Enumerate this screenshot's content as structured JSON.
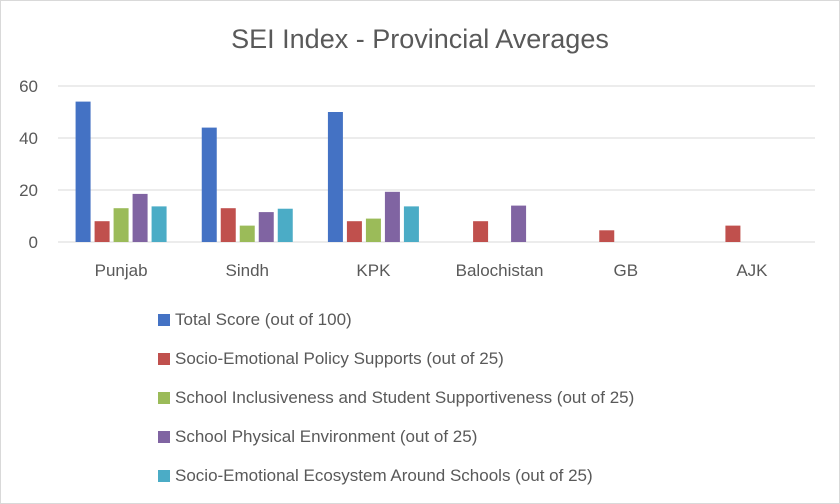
{
  "chart_data": {
    "type": "bar",
    "title": "SEI Index - Provincial Averages",
    "xlabel": "",
    "ylabel": "",
    "ylim": [
      0,
      60
    ],
    "yticks": [
      0,
      20,
      40,
      60
    ],
    "grid": true,
    "legend_position": "bottom",
    "categories": [
      "Punjab",
      "Sindh",
      "KPK",
      "Balochistan",
      "GB",
      "AJK"
    ],
    "series": [
      {
        "name": "Total Score (out of 100)",
        "color": "#4472C4",
        "values": [
          54,
          44,
          50,
          null,
          null,
          null
        ]
      },
      {
        "name": "Socio-Emotional Policy Supports (out of 25)",
        "color": "#C0504D",
        "values": [
          8,
          13,
          8,
          8,
          4.5,
          6.3
        ]
      },
      {
        "name": "School Inclusiveness and Student Supportiveness (out of 25)",
        "color": "#9BBB59",
        "values": [
          13,
          6.3,
          9,
          null,
          null,
          null
        ]
      },
      {
        "name": "School Physical Environment (out of 25)",
        "color": "#8064A2",
        "values": [
          18.5,
          11.5,
          19.3,
          14,
          null,
          null
        ]
      },
      {
        "name": "Socio-Emotional Ecosystem Around Schools (out of 25)",
        "color": "#4BACC6",
        "values": [
          13.7,
          12.8,
          13.7,
          null,
          null,
          null
        ]
      }
    ]
  }
}
